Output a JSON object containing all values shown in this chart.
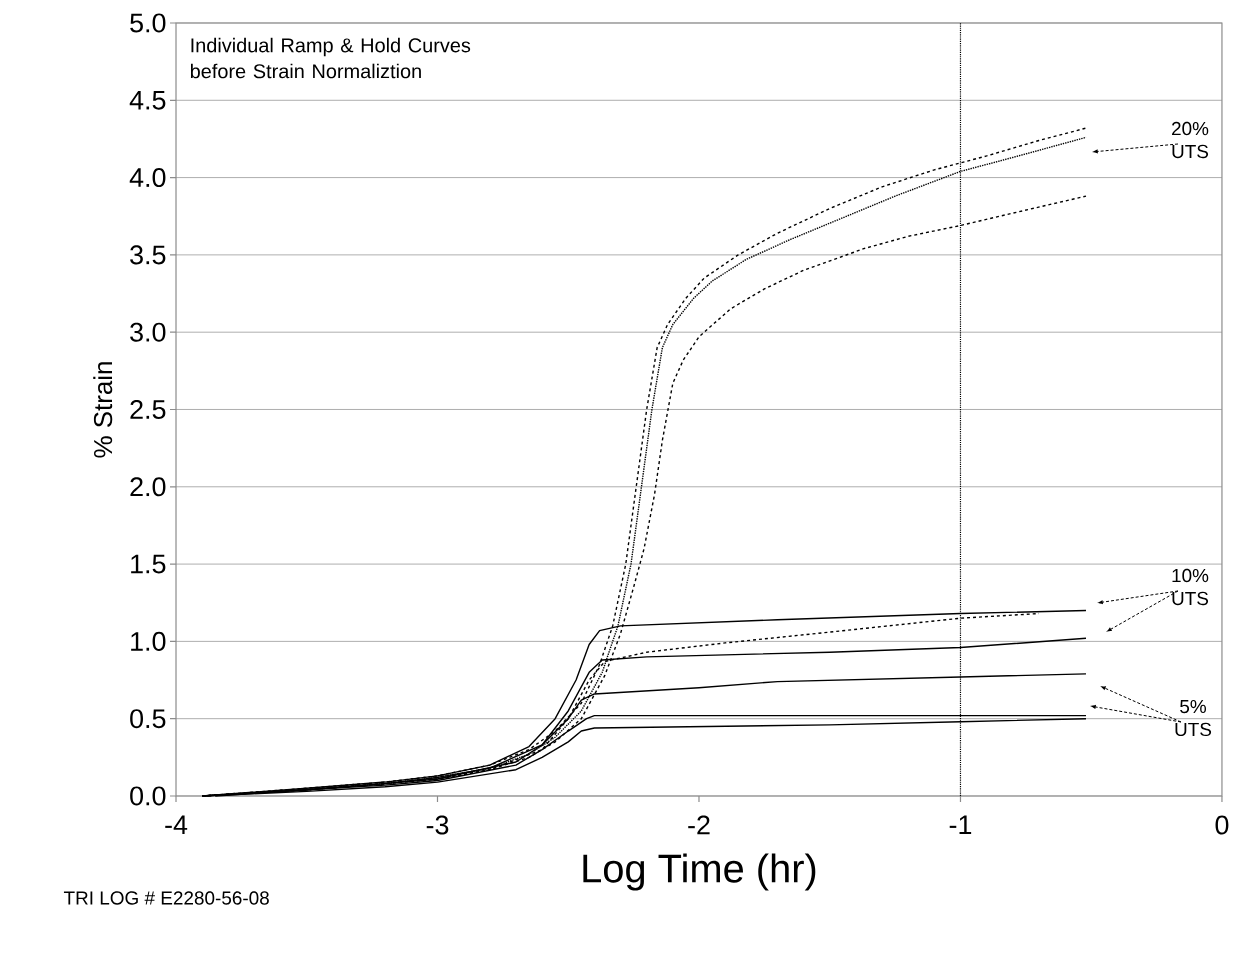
{
  "chart_data": {
    "type": "line",
    "title": "Individual Ramp & Hold Curves before Strain Normaliztion",
    "xlabel": "Log Time (hr)",
    "ylabel": "% Strain",
    "xlim": [
      -4,
      0
    ],
    "xticks": [
      -4,
      -3,
      -2,
      -1,
      0
    ],
    "ylim": [
      0,
      5
    ],
    "yticks": [
      {
        "value": 0,
        "label": "0.0"
      },
      {
        "value": 0.5,
        "label": "0.5"
      },
      {
        "value": 1,
        "label": "1.0"
      },
      {
        "value": 1.5,
        "label": "1.5"
      },
      {
        "value": 2,
        "label": "2.0"
      },
      {
        "value": 2.5,
        "label": "2.5"
      },
      {
        "value": 3,
        "label": "3.0"
      },
      {
        "value": 3.5,
        "label": "3.5"
      },
      {
        "value": 4,
        "label": "4.0"
      },
      {
        "value": 4.5,
        "label": "4.5"
      },
      {
        "value": 5,
        "label": "5.0"
      }
    ],
    "grid": "y",
    "ref_lines": [
      {
        "axis": "x",
        "value": -1,
        "color": "#000000",
        "line_style": "dotted"
      }
    ],
    "annotations": [
      "20% UTS",
      "10% UTS",
      "5% UTS",
      "TRI LOG # E2280-56-08"
    ],
    "series": [
      {
        "color": "#000000",
        "line_style": "dashed",
        "x": [
          -3.9,
          -3.5,
          -3.2,
          -3.0,
          -2.8,
          -2.65,
          -2.55,
          -2.45,
          -2.38,
          -2.33,
          -2.28,
          -2.24,
          -2.2,
          -2.16,
          -2.12,
          -2.05,
          -1.98,
          -1.85,
          -1.7,
          -1.5,
          -1.3,
          -1.1,
          -0.9,
          -0.7,
          -0.52
        ],
        "values": [
          0,
          0.05,
          0.09,
          0.13,
          0.2,
          0.3,
          0.42,
          0.6,
          0.85,
          1.1,
          1.5,
          2.0,
          2.5,
          2.9,
          3.05,
          3.22,
          3.35,
          3.5,
          3.64,
          3.8,
          3.94,
          4.05,
          4.14,
          4.24,
          4.32
        ]
      },
      {
        "color": "#000000",
        "line_style": "dotted",
        "x": [
          -3.9,
          -3.5,
          -3.2,
          -3.0,
          -2.8,
          -2.65,
          -2.55,
          -2.45,
          -2.37,
          -2.31,
          -2.26,
          -2.22,
          -2.18,
          -2.14,
          -2.1,
          -2.02,
          -1.95,
          -1.82,
          -1.65,
          -1.45,
          -1.25,
          -1.0,
          -0.8,
          -0.52
        ],
        "values": [
          0,
          0.04,
          0.08,
          0.12,
          0.18,
          0.27,
          0.38,
          0.55,
          0.8,
          1.1,
          1.5,
          2.0,
          2.5,
          2.9,
          3.05,
          3.22,
          3.33,
          3.47,
          3.6,
          3.74,
          3.88,
          4.04,
          4.13,
          4.26
        ]
      },
      {
        "color": "#000000",
        "line_style": "dashed",
        "x": [
          -3.9,
          -3.5,
          -3.2,
          -3.0,
          -2.8,
          -2.65,
          -2.55,
          -2.45,
          -2.36,
          -2.3,
          -2.25,
          -2.21,
          -2.17,
          -2.14,
          -2.1,
          -2.06,
          -2.0,
          -1.88,
          -1.75,
          -1.6,
          -1.37,
          -1.2,
          -1.0,
          -0.8,
          -0.52
        ],
        "values": [
          0,
          0.04,
          0.08,
          0.11,
          0.17,
          0.25,
          0.35,
          0.5,
          0.78,
          1.05,
          1.35,
          1.6,
          1.95,
          2.3,
          2.67,
          2.82,
          2.97,
          3.15,
          3.28,
          3.4,
          3.54,
          3.62,
          3.69,
          3.77,
          3.88
        ]
      },
      {
        "color": "#000000",
        "line_style": "solid",
        "x": [
          -3.9,
          -3.5,
          -3.2,
          -3.0,
          -2.8,
          -2.65,
          -2.55,
          -2.47,
          -2.42,
          -2.38,
          -2.3,
          -1.7,
          -1.0,
          -0.52
        ],
        "values": [
          0,
          0.05,
          0.09,
          0.13,
          0.2,
          0.32,
          0.5,
          0.75,
          0.98,
          1.07,
          1.1,
          1.14,
          1.18,
          1.2
        ]
      },
      {
        "color": "#000000",
        "line_style": "solid",
        "x": [
          -3.9,
          -3.5,
          -3.2,
          -3.0,
          -2.8,
          -2.6,
          -2.5,
          -2.42,
          -2.37,
          -2.2,
          -1.5,
          -1.0,
          -0.52
        ],
        "values": [
          0,
          0.04,
          0.08,
          0.12,
          0.18,
          0.33,
          0.55,
          0.8,
          0.88,
          0.9,
          0.93,
          0.96,
          1.02
        ]
      },
      {
        "color": "#000000",
        "line_style": "dashed",
        "x": [
          -3.9,
          -3.5,
          -3.2,
          -3.0,
          -2.8,
          -2.6,
          -2.5,
          -2.42,
          -2.36,
          -2.2,
          -1.9,
          -1.5,
          -1.0,
          -0.7
        ],
        "values": [
          0,
          0.04,
          0.08,
          0.11,
          0.17,
          0.3,
          0.5,
          0.75,
          0.87,
          0.93,
          0.99,
          1.06,
          1.15,
          1.18
        ]
      },
      {
        "color": "#000000",
        "line_style": "solid",
        "x": [
          -3.9,
          -3.5,
          -3.2,
          -3.0,
          -2.7,
          -2.6,
          -2.5,
          -2.45,
          -2.4,
          -2.0,
          -1.7,
          -1.0,
          -0.52
        ],
        "values": [
          0,
          0.04,
          0.08,
          0.11,
          0.22,
          0.33,
          0.5,
          0.62,
          0.66,
          0.7,
          0.74,
          0.77,
          0.79
        ]
      },
      {
        "color": "#000000",
        "line_style": "solid",
        "x": [
          -3.85,
          -3.5,
          -3.2,
          -3.0,
          -2.7,
          -2.6,
          -2.5,
          -2.43,
          -2.4,
          -1.0,
          -0.52
        ],
        "values": [
          0,
          0.04,
          0.07,
          0.1,
          0.2,
          0.3,
          0.42,
          0.5,
          0.52,
          0.52,
          0.52
        ]
      },
      {
        "color": "#000000",
        "line_style": "solid",
        "x": [
          -3.9,
          -3.5,
          -3.2,
          -3.0,
          -2.7,
          -2.6,
          -2.5,
          -2.45,
          -2.4,
          -1.5,
          -1.0,
          -0.52
        ],
        "values": [
          0,
          0.03,
          0.06,
          0.09,
          0.17,
          0.25,
          0.35,
          0.42,
          0.44,
          0.46,
          0.48,
          0.5
        ]
      }
    ]
  }
}
